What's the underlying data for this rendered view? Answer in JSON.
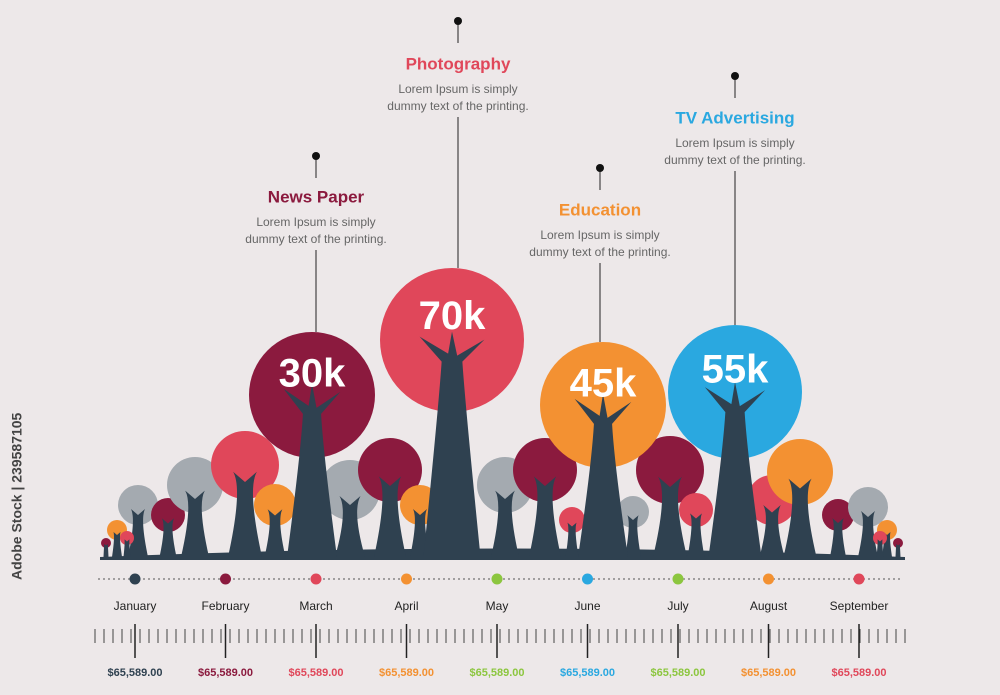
{
  "callouts": [
    {
      "title": "News Paper",
      "text": [
        "Lorem Ipsum is simply",
        "dummy text of the printing."
      ],
      "value": "30k",
      "color": "#8b1a3e"
    },
    {
      "title": "Photography",
      "text": [
        "Lorem Ipsum is simply",
        "dummy text of the printing."
      ],
      "value": "70k",
      "color": "#e0475a"
    },
    {
      "title": "Education",
      "text": [
        "Lorem Ipsum is simply",
        "dummy text of the printing."
      ],
      "value": "45k",
      "color": "#f39132"
    },
    {
      "title": "TV Advertising",
      "text": [
        "Lorem Ipsum is simply",
        "dummy text of the printing."
      ],
      "value": "55k",
      "color": "#2aa8e0"
    }
  ],
  "months": [
    {
      "name": "January",
      "amount": "$65,589.00",
      "color": "#2f4150"
    },
    {
      "name": "February",
      "amount": "$65,589.00",
      "color": "#8b1a3e"
    },
    {
      "name": "March",
      "amount": "$65,589.00",
      "color": "#e0475a"
    },
    {
      "name": "April",
      "amount": "$65,589.00",
      "color": "#f39132"
    },
    {
      "name": "May",
      "amount": "$65,589.00",
      "color": "#8cc63f"
    },
    {
      "name": "June",
      "amount": "$65,589.00",
      "color": "#2aa8e0"
    },
    {
      "name": "July",
      "amount": "$65,589.00",
      "color": "#8cc63f"
    },
    {
      "name": "August",
      "amount": "$65,589.00",
      "color": "#f39132"
    },
    {
      "name": "September",
      "amount": "$65,589.00",
      "color": "#e0475a"
    }
  ],
  "watermark": "Adobe Stock | 239587105"
}
